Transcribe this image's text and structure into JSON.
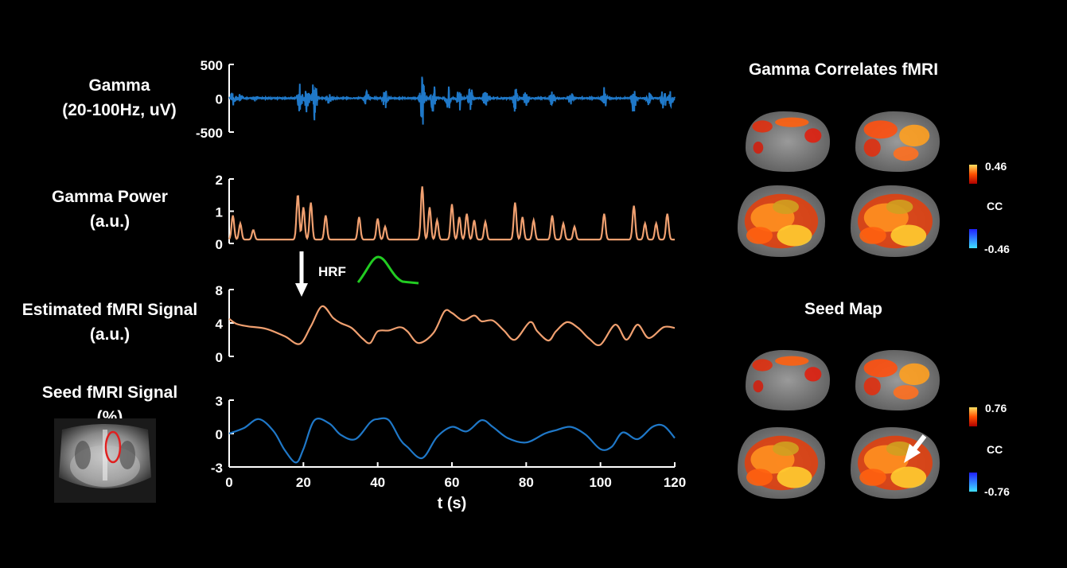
{
  "labels": {
    "gamma_line1": "Gamma",
    "gamma_line2": "(20-100Hz, uV)",
    "power_line1": "Gamma Power",
    "power_line2": "(a.u.)",
    "est_line1": "Estimated fMRI Signal",
    "est_line2": "(a.u.)",
    "seed_line1": "Seed fMRI Signal",
    "seed_line2": "(%)",
    "hrf": "HRF",
    "xlabel": "t (s)"
  },
  "right_panel": {
    "title1": "Gamma Correlates fMRI",
    "title2": "Seed Map",
    "cb1_max": "0.46",
    "cb1_label": "CC",
    "cb1_min": "-0.46",
    "cb2_max": "0.76",
    "cb2_label": "CC",
    "cb2_min": "-0.76"
  },
  "colors": {
    "gamma": "#1f78c8",
    "power": "#f0a070",
    "estimated": "#f0a070",
    "seed": "#1f78c8",
    "hrf": "#22cc22",
    "roi": "#e02020"
  },
  "chart_data": [
    {
      "type": "line",
      "name": "gamma",
      "ylim": [
        -500,
        500
      ],
      "yticks": [
        "500",
        "0",
        "-500"
      ],
      "xlim": [
        0,
        120
      ],
      "bursts": [
        {
          "t": 1,
          "amp": 120
        },
        {
          "t": 3,
          "amp": 60
        },
        {
          "t": 7,
          "amp": 40
        },
        {
          "t": 19,
          "amp": 250
        },
        {
          "t": 21,
          "amp": 230
        },
        {
          "t": 23,
          "amp": 380
        },
        {
          "t": 27,
          "amp": 110
        },
        {
          "t": 37,
          "amp": 150
        },
        {
          "t": 42,
          "amp": 160
        },
        {
          "t": 52,
          "amp": 430
        },
        {
          "t": 55,
          "amp": 250
        },
        {
          "t": 59,
          "amp": 220
        },
        {
          "t": 62,
          "amp": 200
        },
        {
          "t": 65,
          "amp": 200
        },
        {
          "t": 69,
          "amp": 160
        },
        {
          "t": 77,
          "amp": 200
        },
        {
          "t": 80,
          "amp": 140
        },
        {
          "t": 87,
          "amp": 120
        },
        {
          "t": 92,
          "amp": 100
        },
        {
          "t": 101,
          "amp": 180
        },
        {
          "t": 109,
          "amp": 260
        },
        {
          "t": 113,
          "amp": 120
        },
        {
          "t": 117,
          "amp": 220
        },
        {
          "t": 119,
          "amp": 120
        }
      ]
    },
    {
      "type": "line",
      "name": "gamma_power",
      "ylim": [
        0,
        2
      ],
      "yticks": [
        "2",
        "1",
        "0"
      ],
      "xlim": [
        0,
        120
      ],
      "peaks": [
        {
          "t": 1,
          "v": 0.85
        },
        {
          "t": 3,
          "v": 0.6
        },
        {
          "t": 6.5,
          "v": 0.4
        },
        {
          "t": 18.5,
          "v": 1.5
        },
        {
          "t": 20,
          "v": 1.1
        },
        {
          "t": 22,
          "v": 1.25
        },
        {
          "t": 26,
          "v": 0.85
        },
        {
          "t": 35,
          "v": 0.8
        },
        {
          "t": 40,
          "v": 0.75
        },
        {
          "t": 42,
          "v": 0.5
        },
        {
          "t": 52,
          "v": 1.75
        },
        {
          "t": 54,
          "v": 1.1
        },
        {
          "t": 56,
          "v": 0.7
        },
        {
          "t": 60,
          "v": 1.2
        },
        {
          "t": 62,
          "v": 0.8
        },
        {
          "t": 64,
          "v": 0.9
        },
        {
          "t": 66,
          "v": 0.7
        },
        {
          "t": 69,
          "v": 0.65
        },
        {
          "t": 77,
          "v": 1.25
        },
        {
          "t": 79,
          "v": 0.8
        },
        {
          "t": 82,
          "v": 0.7
        },
        {
          "t": 87,
          "v": 0.85
        },
        {
          "t": 90,
          "v": 0.6
        },
        {
          "t": 93,
          "v": 0.5
        },
        {
          "t": 101,
          "v": 0.9
        },
        {
          "t": 109,
          "v": 1.15
        },
        {
          "t": 112,
          "v": 0.6
        },
        {
          "t": 115,
          "v": 0.6
        },
        {
          "t": 118,
          "v": 0.9
        }
      ]
    },
    {
      "type": "line",
      "name": "estimated_fmri",
      "ylim": [
        0,
        8
      ],
      "yticks": [
        "8",
        "4",
        "0"
      ],
      "xlim": [
        0,
        120
      ],
      "x": [
        0,
        2,
        5,
        10,
        15,
        19,
        22,
        25,
        28,
        30,
        33,
        36,
        38,
        40,
        43,
        46,
        48,
        51,
        55,
        58,
        60,
        63,
        66,
        68,
        71,
        74,
        77,
        81,
        83,
        86,
        88,
        91,
        94,
        97,
        100,
        104,
        107,
        110,
        113,
        117,
        120
      ],
      "y": [
        4.5,
        3.9,
        3.6,
        3.3,
        2.4,
        1.5,
        3.6,
        6.0,
        4.6,
        4.0,
        3.4,
        2.1,
        1.6,
        3.0,
        3.1,
        3.5,
        3.0,
        1.6,
        2.8,
        5.4,
        5.2,
        4.3,
        4.9,
        4.2,
        4.3,
        3.1,
        2.0,
        4.1,
        3.0,
        1.9,
        3.0,
        4.1,
        3.4,
        2.1,
        1.4,
        3.8,
        2.0,
        3.8,
        2.2,
        3.5,
        3.4
      ]
    },
    {
      "type": "line",
      "name": "seed_fmri",
      "ylim": [
        -3,
        3
      ],
      "yticks": [
        "3",
        "0",
        "-3"
      ],
      "xlim": [
        0,
        120
      ],
      "xticks": [
        "0",
        "20",
        "40",
        "60",
        "80",
        "100",
        "120"
      ],
      "xlabel": "t (s)",
      "x": [
        0,
        4,
        8,
        12,
        15,
        18,
        20,
        23,
        27,
        30,
        34,
        38,
        40,
        43,
        46,
        48,
        52,
        56,
        60,
        64,
        68,
        71,
        75,
        80,
        85,
        88,
        92,
        96,
        100,
        103,
        106,
        110,
        114,
        117,
        120
      ],
      "y": [
        0.0,
        0.5,
        1.3,
        0.2,
        -1.5,
        -2.6,
        -1.4,
        1.2,
        0.9,
        -0.1,
        -0.5,
        1.0,
        1.3,
        1.2,
        -0.5,
        -1.2,
        -2.2,
        -0.3,
        0.6,
        0.2,
        1.2,
        0.6,
        -0.4,
        -0.8,
        0.0,
        0.3,
        0.6,
        -0.1,
        -1.4,
        -1.2,
        0.1,
        -0.5,
        0.6,
        0.7,
        -0.4
      ]
    }
  ]
}
